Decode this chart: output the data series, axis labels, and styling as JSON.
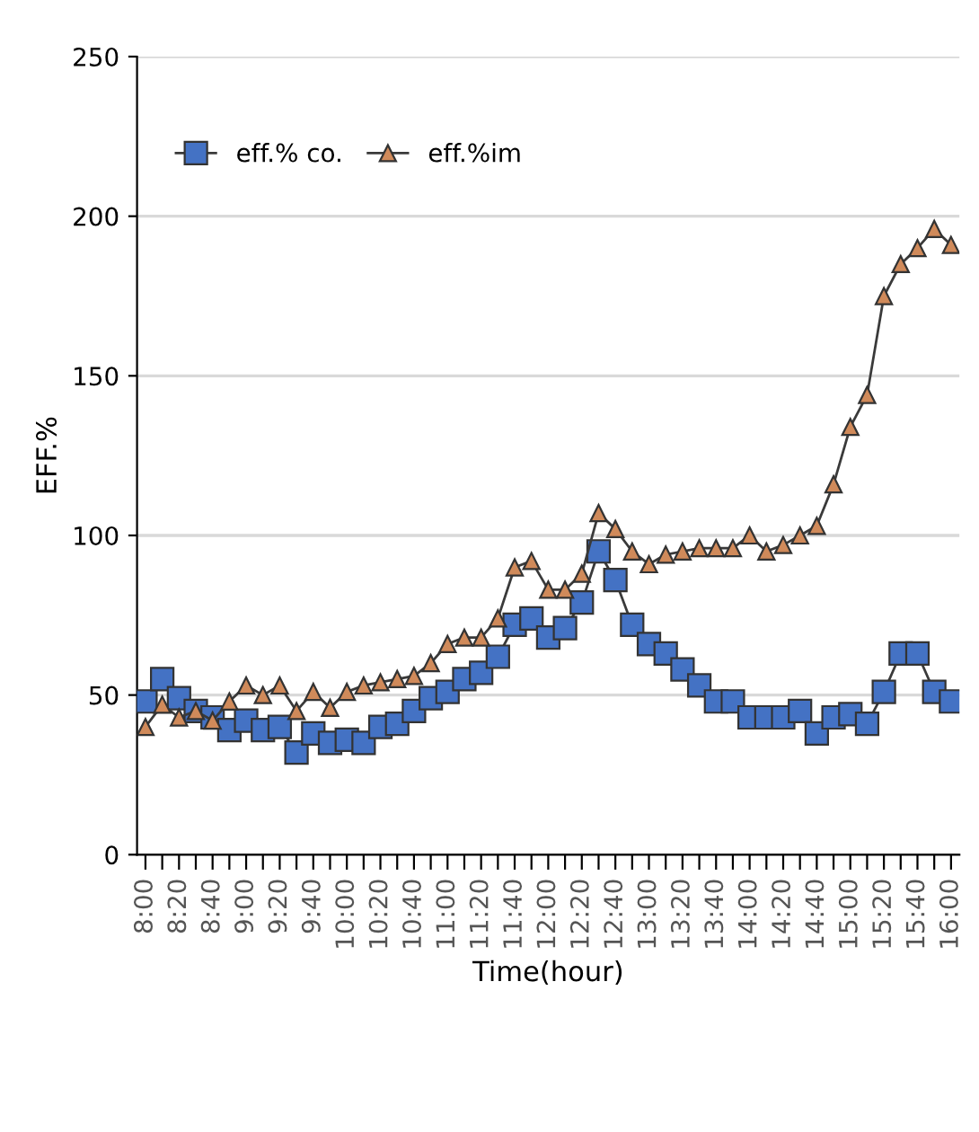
{
  "chart_data": {
    "type": "line",
    "xlabel": "Time(hour)",
    "ylabel": "EFF.%",
    "categories": [
      "8:00",
      null,
      "8:20",
      null,
      "8:40",
      null,
      "9:00",
      null,
      "9:20",
      null,
      "9:40",
      null,
      "10:00",
      null,
      "10:20",
      null,
      "10:40",
      null,
      "11:00",
      null,
      "11:20",
      null,
      "11:40",
      null,
      "12:00",
      null,
      "12:20",
      null,
      "12:40",
      null,
      "13:00",
      null,
      "13:20",
      null,
      "13:40",
      null,
      "14:00",
      null,
      "14:20",
      null,
      "14:40",
      null,
      "15:00",
      null,
      "15:20",
      null,
      "15:40",
      null,
      "16:00"
    ],
    "series": [
      {
        "name": "eff.% co.",
        "color": "#4472c4",
        "marker": "square",
        "values": [
          48,
          55,
          49,
          45,
          43,
          39,
          42,
          39,
          40,
          32,
          38,
          35,
          36,
          35,
          40,
          41,
          45,
          49,
          51,
          55,
          57,
          62,
          72,
          74,
          68,
          71,
          79,
          95,
          86,
          72,
          66,
          63,
          58,
          53,
          48,
          48,
          43,
          43,
          43,
          45,
          38,
          43,
          44,
          41,
          51,
          63,
          63,
          51,
          48
        ]
      },
      {
        "name": "eff.%im",
        "color": "#d08a5a",
        "marker": "triangle",
        "values": [
          40,
          47,
          43,
          45,
          42,
          48,
          53,
          50,
          53,
          45,
          51,
          46,
          51,
          53,
          54,
          55,
          56,
          60,
          66,
          68,
          68,
          74,
          90,
          92,
          83,
          83,
          88,
          107,
          102,
          95,
          91,
          94,
          95,
          96,
          96,
          96,
          100,
          95,
          97,
          100,
          103,
          116,
          134,
          144,
          175,
          185,
          190,
          196,
          191
        ]
      }
    ],
    "ylim": [
      0,
      250
    ],
    "yticks": [
      0,
      50,
      100,
      150,
      200,
      250
    ],
    "grid": "y",
    "legend": "top left",
    "line_style": "solid"
  }
}
